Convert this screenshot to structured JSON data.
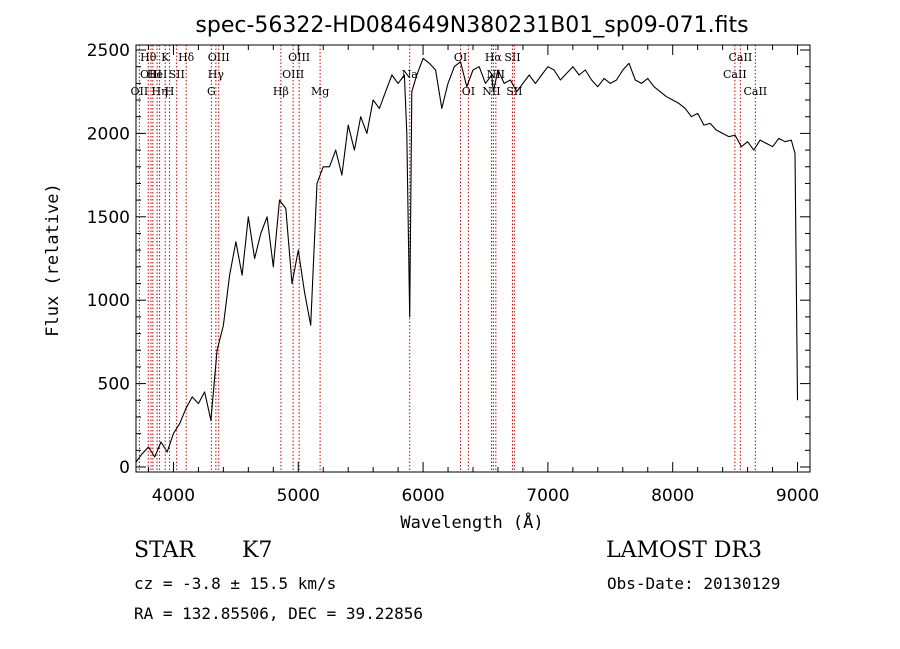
{
  "chart_data": {
    "type": "line",
    "title": "spec-56322-HD084649N380231B01_sp09-071.fits",
    "xlabel": "Wavelength (Å)",
    "ylabel": "Flux (relative)",
    "xlim": [
      3700,
      9100
    ],
    "ylim": [
      -30,
      2530
    ],
    "xticks": [
      4000,
      5000,
      6000,
      7000,
      8000,
      9000
    ],
    "yticks": [
      0,
      500,
      1000,
      1500,
      2000,
      2500
    ],
    "grid": false,
    "series": [
      {
        "color": "#000000",
        "x": [
          3700,
          3750,
          3800,
          3850,
          3900,
          3950,
          4000,
          4050,
          4100,
          4150,
          4200,
          4250,
          4300,
          4350,
          4400,
          4450,
          4500,
          4550,
          4600,
          4650,
          4700,
          4750,
          4800,
          4850,
          4900,
          4950,
          5000,
          5050,
          5100,
          5150,
          5200,
          5250,
          5300,
          5350,
          5400,
          5450,
          5500,
          5550,
          5600,
          5650,
          5700,
          5750,
          5800,
          5850,
          5870,
          5893,
          5910,
          5950,
          6000,
          6050,
          6100,
          6150,
          6200,
          6250,
          6300,
          6350,
          6400,
          6450,
          6500,
          6550,
          6563,
          6600,
          6650,
          6700,
          6750,
          6800,
          6850,
          6900,
          6950,
          7000,
          7050,
          7100,
          7150,
          7200,
          7250,
          7300,
          7350,
          7400,
          7450,
          7500,
          7550,
          7600,
          7650,
          7700,
          7750,
          7800,
          7850,
          7900,
          7950,
          8000,
          8050,
          8100,
          8150,
          8200,
          8250,
          8300,
          8350,
          8400,
          8450,
          8500,
          8550,
          8600,
          8650,
          8700,
          8750,
          8800,
          8850,
          8900,
          8950,
          8980,
          9000
        ],
        "y": [
          30,
          80,
          120,
          60,
          150,
          90,
          200,
          260,
          350,
          420,
          380,
          450,
          280,
          700,
          850,
          1150,
          1350,
          1150,
          1500,
          1250,
          1400,
          1500,
          1200,
          1600,
          1550,
          1100,
          1300,
          1050,
          850,
          1700,
          1800,
          1800,
          1900,
          1750,
          2050,
          1900,
          2100,
          2000,
          2200,
          2150,
          2250,
          2350,
          2300,
          2350,
          2000,
          900,
          2250,
          2350,
          2450,
          2420,
          2380,
          2150,
          2300,
          2400,
          2430,
          2280,
          2380,
          2400,
          2300,
          2350,
          2250,
          2380,
          2300,
          2320,
          2250,
          2300,
          2350,
          2300,
          2350,
          2400,
          2380,
          2320,
          2360,
          2400,
          2350,
          2380,
          2320,
          2280,
          2330,
          2300,
          2320,
          2380,
          2420,
          2320,
          2300,
          2330,
          2280,
          2250,
          2220,
          2200,
          2180,
          2150,
          2100,
          2120,
          2050,
          2060,
          2020,
          2000,
          1980,
          1990,
          1920,
          1950,
          1900,
          1960,
          1940,
          1920,
          1970,
          1950,
          1960,
          1880,
          400
        ]
      }
    ],
    "lines": [
      {
        "x": 3727,
        "labels": [
          "OII"
        ],
        "row": 2
      },
      {
        "x": 3798,
        "labels": [
          "Hθ"
        ],
        "row": 0
      },
      {
        "x": 3820,
        "labels": [
          "OIII"
        ],
        "row": 1
      },
      {
        "x": 3835,
        "labels": [],
        "row": 2
      },
      {
        "x": 3869,
        "labels": [
          "HeI"
        ],
        "row": 1
      },
      {
        "x": 3889,
        "labels": [
          "Hη"
        ],
        "row": 2
      },
      {
        "x": 3934,
        "labels": [
          "K"
        ],
        "row": 0
      },
      {
        "x": 3969,
        "labels": [
          "H"
        ],
        "row": 2
      },
      {
        "x": 4026,
        "labels": [
          "SII"
        ],
        "row": 1
      },
      {
        "x": 4102,
        "labels": [
          "Hδ"
        ],
        "row": 0
      },
      {
        "x": 4304,
        "labels": [
          "G"
        ],
        "row": 2
      },
      {
        "x": 4340,
        "labels": [
          "Hγ"
        ],
        "row": 1
      },
      {
        "x": 4363,
        "labels": [
          "OIII"
        ],
        "row": 0
      },
      {
        "x": 4861,
        "labels": [
          "Hβ"
        ],
        "row": 2
      },
      {
        "x": 4959,
        "labels": [
          "OIII"
        ],
        "row": 1
      },
      {
        "x": 5007,
        "labels": [
          "OIII"
        ],
        "row": 0
      },
      {
        "x": 5175,
        "labels": [
          "Mg"
        ],
        "row": 2
      },
      {
        "x": 5893,
        "labels": [
          "Na"
        ],
        "row": 1
      },
      {
        "x": 6300,
        "labels": [
          "OI"
        ],
        "row": 0
      },
      {
        "x": 6363,
        "labels": [
          "OI"
        ],
        "row": 2
      },
      {
        "x": 6548,
        "labels": [
          "NII"
        ],
        "row": 2
      },
      {
        "x": 6563,
        "labels": [
          "Hα"
        ],
        "row": 0
      },
      {
        "x": 6583,
        "labels": [
          "NII"
        ],
        "row": 1
      },
      {
        "x": 6716,
        "labels": [
          "SII"
        ],
        "row": 0
      },
      {
        "x": 6731,
        "labels": [
          "SII"
        ],
        "row": 2
      },
      {
        "x": 8498,
        "labels": [
          "CaII"
        ],
        "row": 1
      },
      {
        "x": 8542,
        "labels": [
          "CaII"
        ],
        "row": 0
      },
      {
        "x": 8662,
        "labels": [
          "CaII"
        ],
        "row": 2
      }
    ],
    "line_color": "#cc0000"
  },
  "footer": {
    "class_type": "STAR",
    "subclass": "K7",
    "survey": "LAMOST DR3",
    "redshift": "cz = -3.8 ± 15.5 km/s",
    "obs_date": "Obs-Date: 20130129",
    "coords": "RA = 132.85506, DEC =  39.22856"
  }
}
